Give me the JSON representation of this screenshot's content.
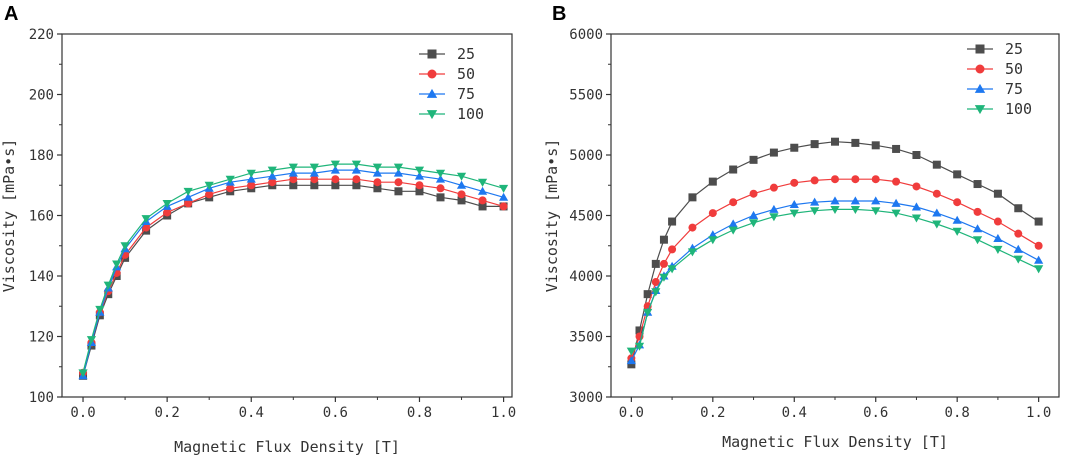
{
  "panels": [
    {
      "letter": "A"
    },
    {
      "letter": "B"
    }
  ],
  "colors": {
    "s25": "#4d4d4d",
    "s50": "#f03c3c",
    "s75": "#1e78f0",
    "s100": "#1fb57a"
  },
  "chart_data": [
    {
      "panel": "A",
      "type": "scatter",
      "xlabel": "Magnetic Flux Density [T]",
      "ylabel": "Viscosity [mPa•s]",
      "xlim": [
        -0.05,
        1.02
      ],
      "ylim": [
        100,
        220
      ],
      "xticks": [
        0.0,
        0.2,
        0.4,
        0.6,
        0.8,
        1.0
      ],
      "xtick_labels": [
        "0.0",
        "0.2",
        "0.4",
        "0.6",
        "0.8",
        "1.0"
      ],
      "yticks": [
        100,
        120,
        140,
        160,
        180,
        200,
        220
      ],
      "ytick_labels": [
        "100",
        "120",
        "140",
        "160",
        "180",
        "200",
        "220"
      ],
      "legend_position": "top-right",
      "x": [
        0.0,
        0.02,
        0.04,
        0.06,
        0.08,
        0.1,
        0.15,
        0.2,
        0.25,
        0.3,
        0.35,
        0.4,
        0.45,
        0.5,
        0.55,
        0.6,
        0.65,
        0.7,
        0.75,
        0.8,
        0.85,
        0.9,
        0.95,
        1.0
      ],
      "series": [
        {
          "name": "25",
          "marker": "square",
          "color_key": "s25",
          "values": [
            107,
            117,
            127,
            134,
            140,
            146,
            155,
            160,
            164,
            166,
            168,
            169,
            170,
            170,
            170,
            170,
            170,
            169,
            168,
            168,
            166,
            165,
            163,
            163
          ]
        },
        {
          "name": "50",
          "marker": "circle",
          "color_key": "s50",
          "values": [
            108,
            118,
            128,
            135,
            141,
            147,
            156,
            161,
            164,
            167,
            169,
            170,
            171,
            172,
            172,
            172,
            172,
            171,
            171,
            170,
            169,
            167,
            165,
            163
          ]
        },
        {
          "name": "75",
          "marker": "triangle-up",
          "color_key": "s75",
          "values": [
            107,
            118,
            128,
            136,
            143,
            149,
            158,
            163,
            166,
            169,
            171,
            172,
            173,
            174,
            174,
            175,
            175,
            174,
            174,
            173,
            172,
            170,
            168,
            166
          ]
        },
        {
          "name": "100",
          "marker": "triangle-down",
          "color_key": "s100",
          "values": [
            108,
            119,
            129,
            137,
            144,
            150,
            159,
            164,
            168,
            170,
            172,
            174,
            175,
            176,
            176,
            177,
            177,
            176,
            176,
            175,
            174,
            173,
            171,
            169
          ]
        }
      ]
    },
    {
      "panel": "B",
      "type": "scatter",
      "xlabel": "Magnetic Flux Density [T]",
      "ylabel": "Viscosity [mPa•s]",
      "xlim": [
        -0.05,
        1.05
      ],
      "ylim": [
        3000,
        6000
      ],
      "xticks": [
        0.0,
        0.2,
        0.4,
        0.6,
        0.8,
        1.0
      ],
      "xtick_labels": [
        "0.0",
        "0.2",
        "0.4",
        "0.6",
        "0.8",
        "1.0"
      ],
      "yticks": [
        3000,
        3500,
        4000,
        4500,
        5000,
        5500,
        6000
      ],
      "ytick_labels": [
        "3000",
        "3500",
        "4000",
        "4500",
        "5000",
        "5500",
        "6000"
      ],
      "legend_position": "top-right",
      "x": [
        0.0,
        0.02,
        0.04,
        0.06,
        0.08,
        0.1,
        0.15,
        0.2,
        0.25,
        0.3,
        0.35,
        0.4,
        0.45,
        0.5,
        0.55,
        0.6,
        0.65,
        0.7,
        0.75,
        0.8,
        0.85,
        0.9,
        0.95,
        1.0
      ],
      "series": [
        {
          "name": "25",
          "marker": "square",
          "color_key": "s25",
          "values": [
            3270,
            3550,
            3850,
            4100,
            4300,
            4450,
            4650,
            4780,
            4880,
            4960,
            5020,
            5060,
            5090,
            5110,
            5100,
            5080,
            5050,
            5000,
            4920,
            4840,
            4760,
            4680,
            4560,
            4450
          ]
        },
        {
          "name": "50",
          "marker": "circle",
          "color_key": "s50",
          "values": [
            3320,
            3500,
            3750,
            3950,
            4100,
            4220,
            4400,
            4520,
            4610,
            4680,
            4730,
            4770,
            4790,
            4800,
            4800,
            4800,
            4780,
            4740,
            4680,
            4610,
            4530,
            4450,
            4350,
            4250
          ]
        },
        {
          "name": "75",
          "marker": "triangle-up",
          "color_key": "s75",
          "values": [
            3300,
            3430,
            3700,
            3880,
            4000,
            4080,
            4230,
            4340,
            4430,
            4500,
            4550,
            4590,
            4610,
            4620,
            4620,
            4620,
            4600,
            4570,
            4520,
            4460,
            4390,
            4310,
            4220,
            4130
          ]
        },
        {
          "name": "100",
          "marker": "triangle-down",
          "color_key": "s100",
          "values": [
            3380,
            3420,
            3700,
            3870,
            3990,
            4060,
            4200,
            4300,
            4380,
            4440,
            4490,
            4520,
            4540,
            4550,
            4550,
            4540,
            4520,
            4480,
            4430,
            4370,
            4300,
            4220,
            4140,
            4060
          ]
        }
      ]
    }
  ]
}
